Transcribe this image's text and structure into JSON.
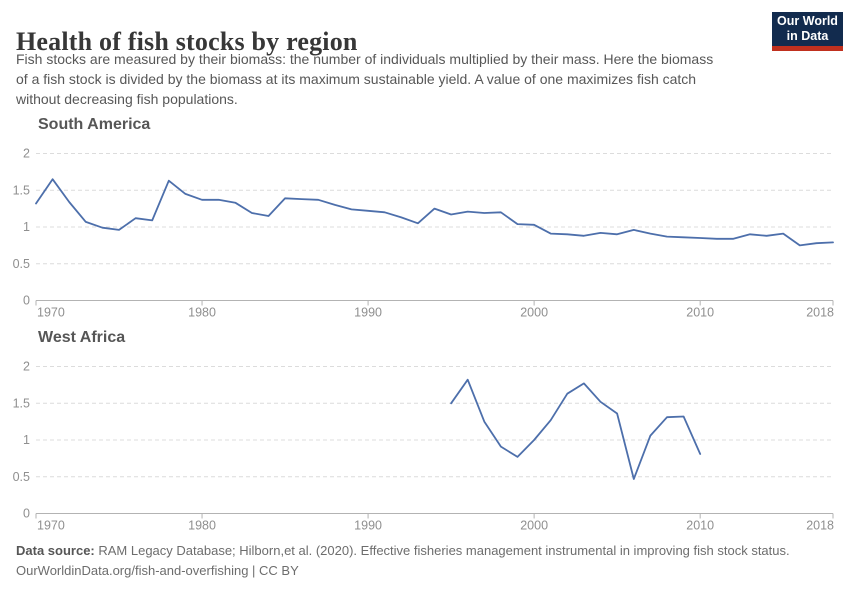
{
  "header": {
    "title": "Health of fish stocks by region",
    "subtitle_lines": [
      "Fish stocks are measured by their biomass: the number of individuals multiplied by their mass. Here the biomass",
      "of a fish stock is divided by the biomass at its maximum sustainable yield. A value of one maximizes fish catch",
      "without decreasing fish populations."
    ],
    "logo": {
      "line1": "Our World",
      "line2": "in Data",
      "bg_color": "#122b4e",
      "bar_color": "#c0301e"
    }
  },
  "style": {
    "line_color": "#4d6fab",
    "grid_color": "#dcdcdc",
    "axis_color": "#b3b3b3",
    "tick_label_color": "#8f8f8f"
  },
  "chart_data": [
    {
      "type": "line",
      "title": "South America",
      "xlabel": "",
      "ylabel": "",
      "xlim": [
        1970,
        2018
      ],
      "ylim": [
        0,
        2
      ],
      "xticks": [
        1970,
        1980,
        1990,
        2000,
        2010,
        2018
      ],
      "yticks": [
        0,
        0.5,
        1,
        1.5,
        2
      ],
      "grid": true,
      "legend": "none",
      "x": [
        1970,
        1971,
        1972,
        1973,
        1974,
        1975,
        1976,
        1977,
        1978,
        1979,
        1980,
        1981,
        1982,
        1983,
        1984,
        1985,
        1986,
        1987,
        1988,
        1989,
        1990,
        1991,
        1992,
        1993,
        1994,
        1995,
        1996,
        1997,
        1998,
        1999,
        2000,
        2001,
        2002,
        2003,
        2004,
        2005,
        2006,
        2007,
        2008,
        2009,
        2010,
        2011,
        2012,
        2013,
        2014,
        2015,
        2016,
        2017,
        2018
      ],
      "values": [
        1.32,
        1.65,
        1.34,
        1.07,
        0.99,
        0.96,
        1.12,
        1.09,
        1.63,
        1.45,
        1.37,
        1.37,
        1.33,
        1.19,
        1.15,
        1.39,
        1.38,
        1.37,
        1.3,
        1.24,
        1.22,
        1.2,
        1.13,
        1.05,
        1.25,
        1.17,
        1.21,
        1.19,
        1.2,
        1.04,
        1.03,
        0.91,
        0.9,
        0.88,
        0.92,
        0.9,
        0.96,
        0.91,
        0.87,
        0.86,
        0.85,
        0.84,
        0.84,
        0.9,
        0.88,
        0.91,
        0.75,
        0.78,
        0.79
      ]
    },
    {
      "type": "line",
      "title": "West Africa",
      "xlabel": "",
      "ylabel": "",
      "xlim": [
        1970,
        2018
      ],
      "ylim": [
        0,
        2
      ],
      "xticks": [
        1970,
        1980,
        1990,
        2000,
        2010,
        2018
      ],
      "yticks": [
        0,
        0.5,
        1,
        1.5,
        2
      ],
      "grid": true,
      "legend": "none",
      "x": [
        1995,
        1996,
        1997,
        1998,
        1999,
        2000,
        2001,
        2002,
        2003,
        2004,
        2005,
        2006,
        2007,
        2008,
        2009,
        2010
      ],
      "values": [
        1.5,
        1.82,
        1.25,
        0.91,
        0.77,
        1.0,
        1.27,
        1.63,
        1.77,
        1.52,
        1.36,
        0.47,
        1.06,
        1.31,
        1.32,
        0.81
      ]
    }
  ],
  "footer": {
    "source_label": "Data source:",
    "source_text": " RAM Legacy Database; Hilborn,et al. (2020). Effective fisheries management instrumental in improving fish stock status.",
    "link_line": "OurWorldinData.org/fish-and-overfishing | CC BY"
  }
}
